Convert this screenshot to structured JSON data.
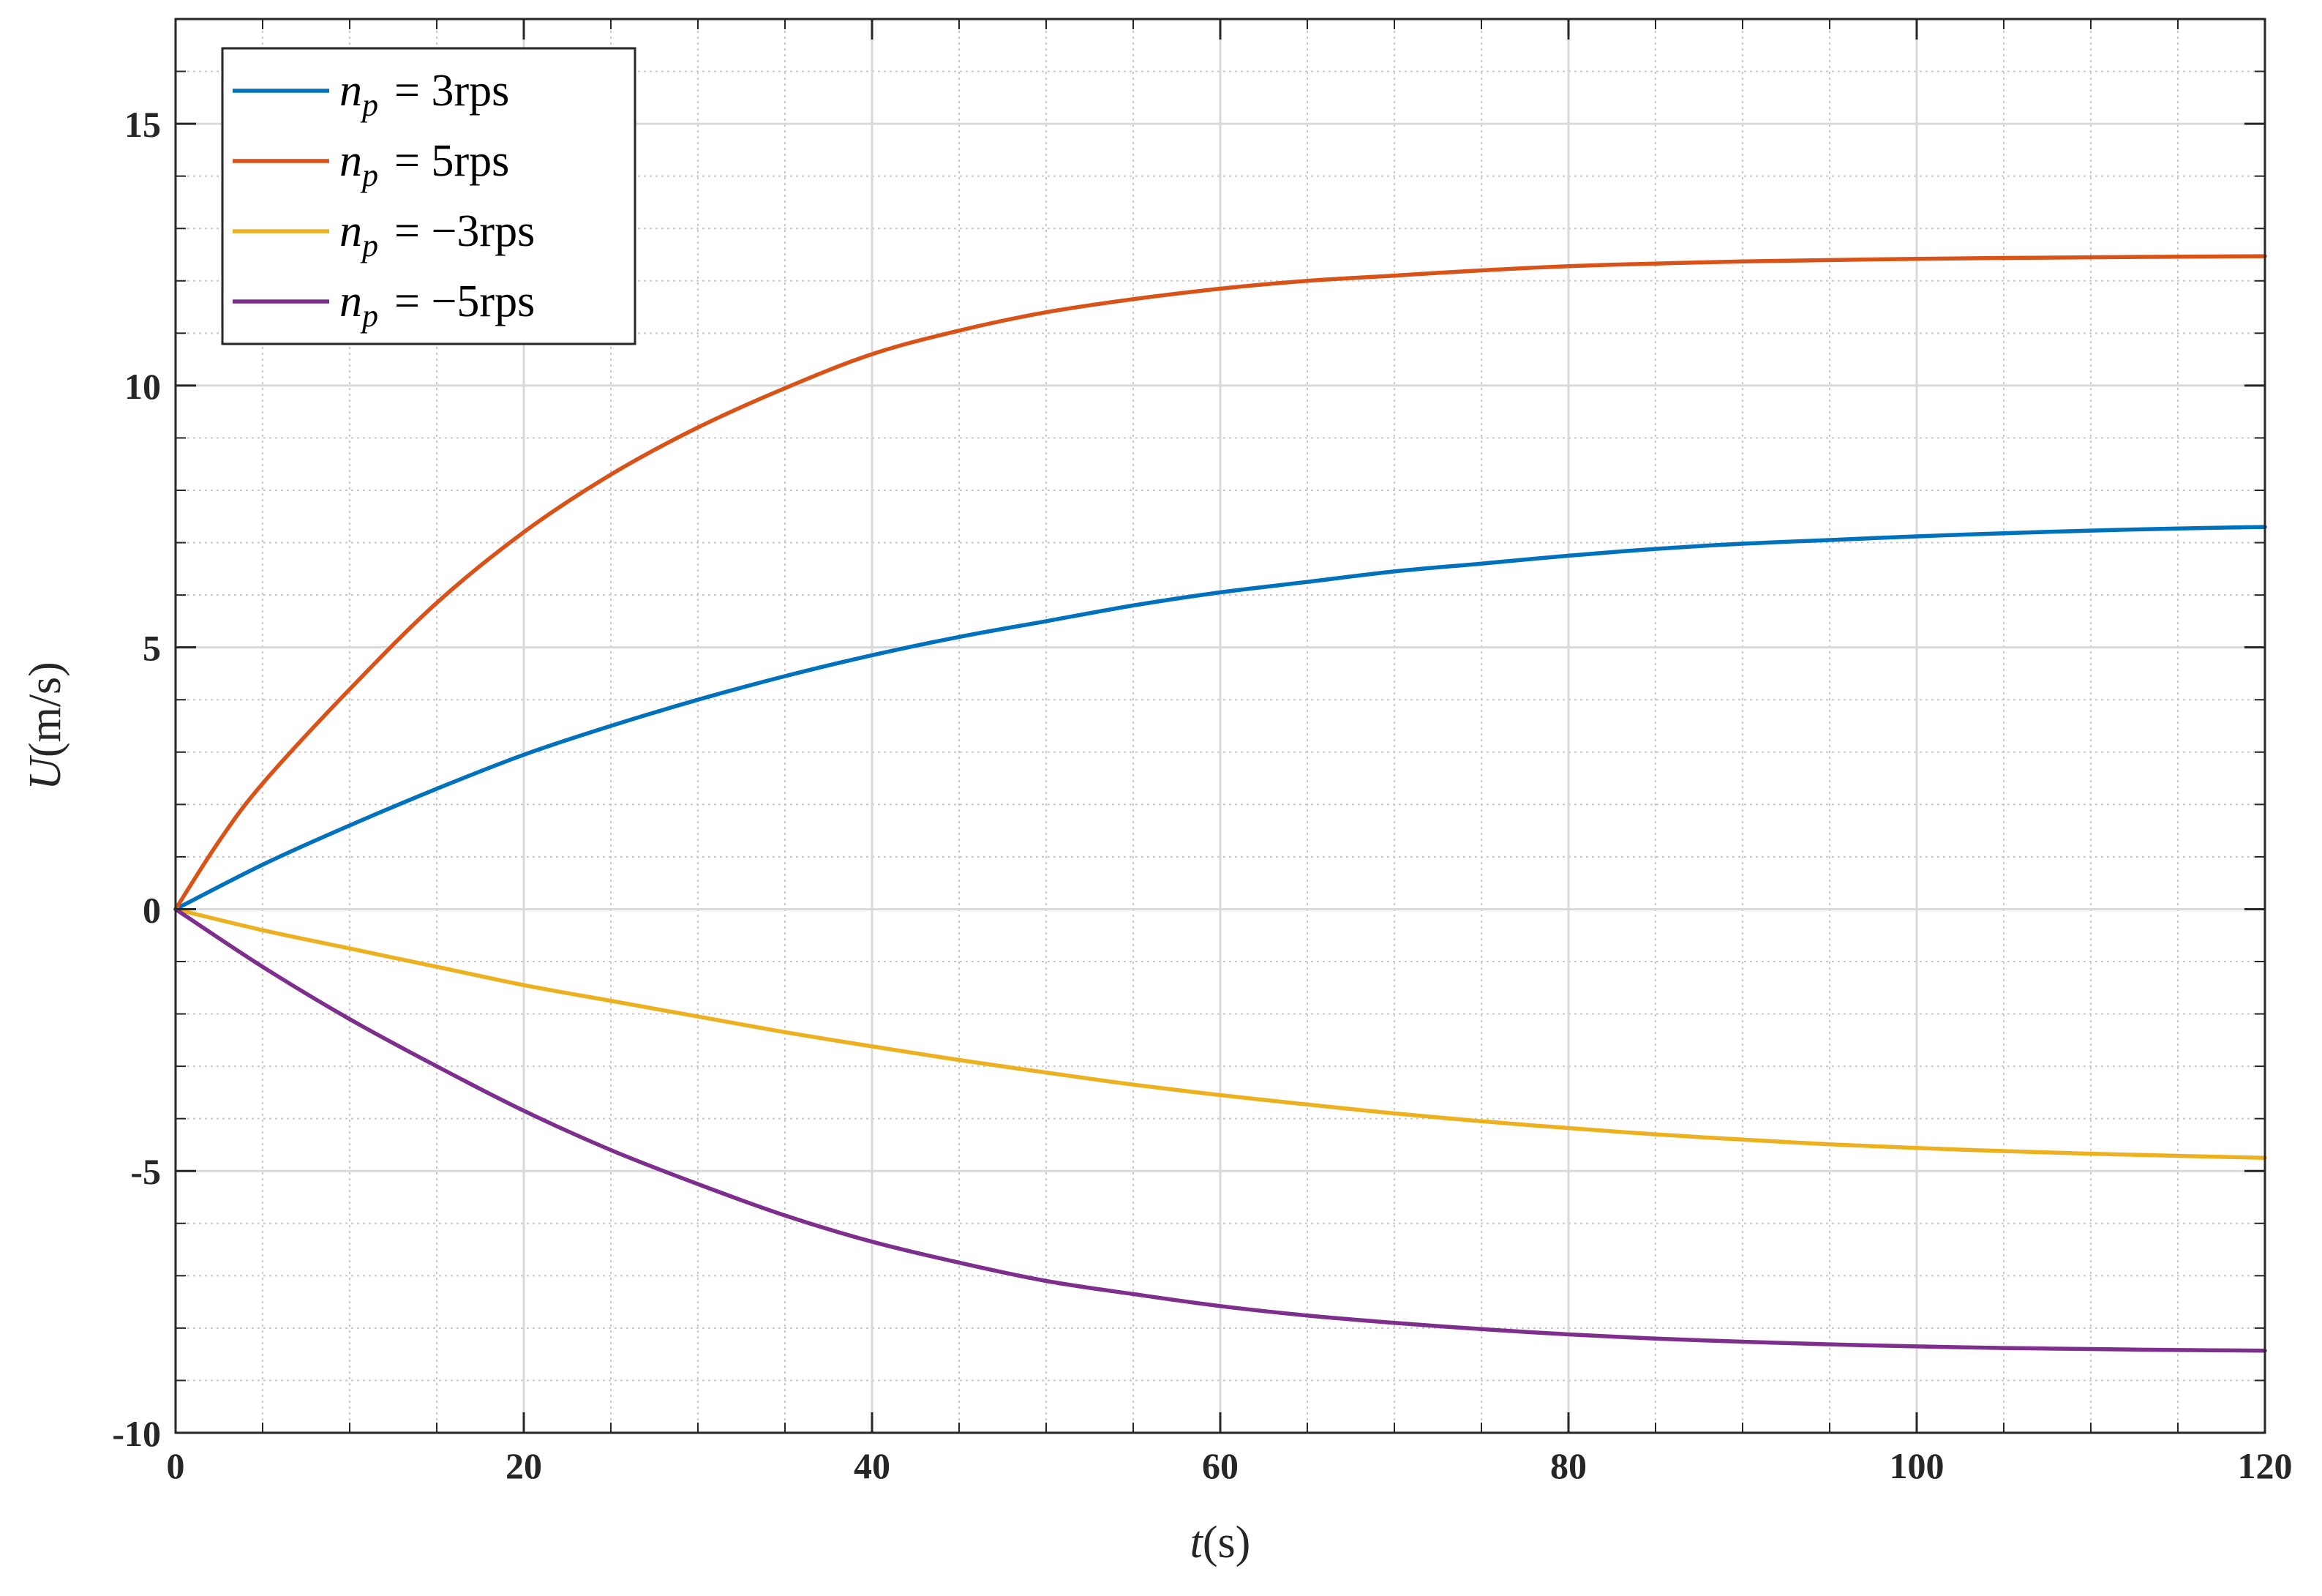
{
  "chart_data": {
    "type": "line",
    "xlabel": {
      "var": "t",
      "unit": "(s)"
    },
    "ylabel": {
      "var": "U",
      "unit": "(m/s)"
    },
    "xlim": [
      0,
      120
    ],
    "ylim": [
      -10,
      17
    ],
    "xticks": [
      0,
      20,
      40,
      60,
      80,
      100,
      120
    ],
    "yticks": [
      -10,
      -5,
      0,
      5,
      10,
      15
    ],
    "x_minor_step": 5,
    "y_minor_step": 1,
    "grid": true,
    "legend_position": "top-left",
    "series": [
      {
        "name": "n_p = 3rps",
        "label": {
          "var": "n",
          "sub": "p",
          "rhs": "= 3rps"
        },
        "color": "#0072BD",
        "x": [
          0,
          5,
          10,
          15,
          20,
          25,
          30,
          35,
          40,
          45,
          50,
          55,
          60,
          65,
          70,
          75,
          80,
          85,
          90,
          95,
          100,
          105,
          110,
          115,
          120
        ],
        "y": [
          0,
          0.85,
          1.6,
          2.3,
          2.95,
          3.5,
          4.0,
          4.45,
          4.85,
          5.2,
          5.5,
          5.8,
          6.05,
          6.25,
          6.45,
          6.6,
          6.75,
          6.88,
          6.98,
          7.05,
          7.12,
          7.18,
          7.23,
          7.27,
          7.3
        ]
      },
      {
        "name": "n_p = 5rps",
        "label": {
          "var": "n",
          "sub": "p",
          "rhs": "= 5rps"
        },
        "color": "#D95319",
        "x": [
          0,
          2.5,
          5,
          10,
          15,
          20,
          25,
          30,
          35,
          40,
          45,
          50,
          55,
          60,
          65,
          70,
          75,
          80,
          85,
          90,
          100,
          110,
          120
        ],
        "y": [
          0,
          1.3,
          2.4,
          4.2,
          5.85,
          7.2,
          8.3,
          9.2,
          9.95,
          10.6,
          11.05,
          11.4,
          11.65,
          11.85,
          12.0,
          12.1,
          12.2,
          12.28,
          12.33,
          12.37,
          12.42,
          12.45,
          12.47
        ]
      },
      {
        "name": "n_p = −3rps",
        "label": {
          "var": "n",
          "sub": "p",
          "rhs": "= −3rps"
        },
        "color": "#EDB120",
        "x": [
          0,
          5,
          10,
          15,
          20,
          25,
          30,
          35,
          40,
          45,
          50,
          55,
          60,
          65,
          70,
          75,
          80,
          85,
          90,
          95,
          100,
          105,
          110,
          115,
          120
        ],
        "y": [
          0,
          -0.4,
          -0.75,
          -1.1,
          -1.45,
          -1.75,
          -2.05,
          -2.35,
          -2.62,
          -2.88,
          -3.12,
          -3.35,
          -3.55,
          -3.73,
          -3.9,
          -4.05,
          -4.18,
          -4.3,
          -4.4,
          -4.49,
          -4.56,
          -4.62,
          -4.67,
          -4.71,
          -4.75
        ]
      },
      {
        "name": "n_p = −5rps",
        "label": {
          "var": "n",
          "sub": "p",
          "rhs": "= −5rps"
        },
        "color": "#7E2F8E",
        "x": [
          0,
          5,
          10,
          15,
          20,
          25,
          30,
          35,
          40,
          45,
          50,
          55,
          60,
          65,
          70,
          75,
          80,
          85,
          90,
          95,
          100,
          105,
          110,
          115,
          120
        ],
        "y": [
          0,
          -1.1,
          -2.1,
          -3.0,
          -3.85,
          -4.6,
          -5.25,
          -5.85,
          -6.35,
          -6.75,
          -7.1,
          -7.35,
          -7.58,
          -7.76,
          -7.9,
          -8.02,
          -8.12,
          -8.2,
          -8.26,
          -8.31,
          -8.35,
          -8.38,
          -8.4,
          -8.42,
          -8.43
        ]
      }
    ]
  }
}
